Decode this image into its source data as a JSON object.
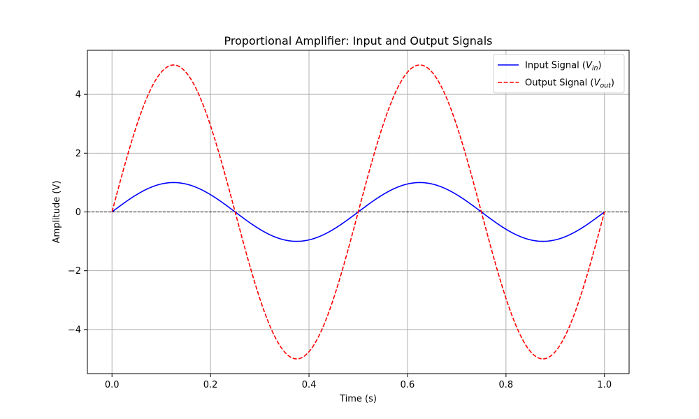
{
  "chart_data": {
    "type": "line",
    "title": "Proportional Amplifier: Input and Output Signals",
    "xlabel": "Time (s)",
    "ylabel": "Amplitude (V)",
    "xlim": [
      -0.05,
      1.05
    ],
    "ylim": [
      -5.5,
      5.5
    ],
    "xticks": [
      0.0,
      0.2,
      0.4,
      0.6,
      0.8,
      1.0
    ],
    "xtick_labels": [
      "0.0",
      "0.2",
      "0.4",
      "0.6",
      "0.8",
      "1.0"
    ],
    "yticks": [
      -4,
      -2,
      0,
      2,
      4
    ],
    "ytick_labels": [
      "−4",
      "−2",
      "0",
      "2",
      "4"
    ],
    "grid": true,
    "legend_position": "top-right",
    "zero_line": {
      "y": 0,
      "style": "dashed",
      "color": "#000000"
    },
    "series": [
      {
        "name_main": "Input Signal (",
        "name_var": "V",
        "name_sub": "in",
        "name_end": ")",
        "color": "#0000ff",
        "style": "solid",
        "x": [
          0.0,
          0.025,
          0.05,
          0.075,
          0.1,
          0.125,
          0.15,
          0.175,
          0.2,
          0.225,
          0.25,
          0.275,
          0.3,
          0.325,
          0.35,
          0.375,
          0.4,
          0.425,
          0.45,
          0.475,
          0.5,
          0.525,
          0.55,
          0.575,
          0.6,
          0.625,
          0.65,
          0.675,
          0.7,
          0.725,
          0.75,
          0.775,
          0.8,
          0.825,
          0.85,
          0.875,
          0.9,
          0.925,
          0.95,
          0.975,
          1.0
        ],
        "y": [
          0.0,
          0.309,
          0.588,
          0.809,
          0.951,
          1.0,
          0.951,
          0.809,
          0.588,
          0.309,
          0.0,
          -0.309,
          -0.588,
          -0.809,
          -0.951,
          -1.0,
          -0.951,
          -0.809,
          -0.588,
          -0.309,
          0.0,
          0.309,
          0.588,
          0.809,
          0.951,
          1.0,
          0.951,
          0.809,
          0.588,
          0.309,
          0.0,
          -0.309,
          -0.588,
          -0.809,
          -0.951,
          -1.0,
          -0.951,
          -0.809,
          -0.588,
          -0.309,
          0.0
        ]
      },
      {
        "name_main": "Output Signal (",
        "name_var": "V",
        "name_sub": "out",
        "name_end": ")",
        "color": "#ff0000",
        "style": "dashed",
        "x": [
          0.0,
          0.025,
          0.05,
          0.075,
          0.1,
          0.125,
          0.15,
          0.175,
          0.2,
          0.225,
          0.25,
          0.275,
          0.3,
          0.325,
          0.35,
          0.375,
          0.4,
          0.425,
          0.45,
          0.475,
          0.5,
          0.525,
          0.55,
          0.575,
          0.6,
          0.625,
          0.65,
          0.675,
          0.7,
          0.725,
          0.75,
          0.775,
          0.8,
          0.825,
          0.85,
          0.875,
          0.9,
          0.925,
          0.95,
          0.975,
          1.0
        ],
        "y": [
          0.0,
          1.545,
          2.939,
          4.045,
          4.755,
          5.0,
          4.755,
          4.045,
          2.939,
          1.545,
          0.0,
          -1.545,
          -2.939,
          -4.045,
          -4.755,
          -5.0,
          -4.755,
          -4.045,
          -2.939,
          -1.545,
          0.0,
          1.545,
          2.939,
          4.045,
          4.755,
          5.0,
          4.755,
          4.045,
          2.939,
          1.545,
          0.0,
          -1.545,
          -2.939,
          -4.045,
          -4.755,
          -5.0,
          -4.755,
          -4.045,
          -2.939,
          -1.545,
          0.0
        ]
      }
    ]
  }
}
